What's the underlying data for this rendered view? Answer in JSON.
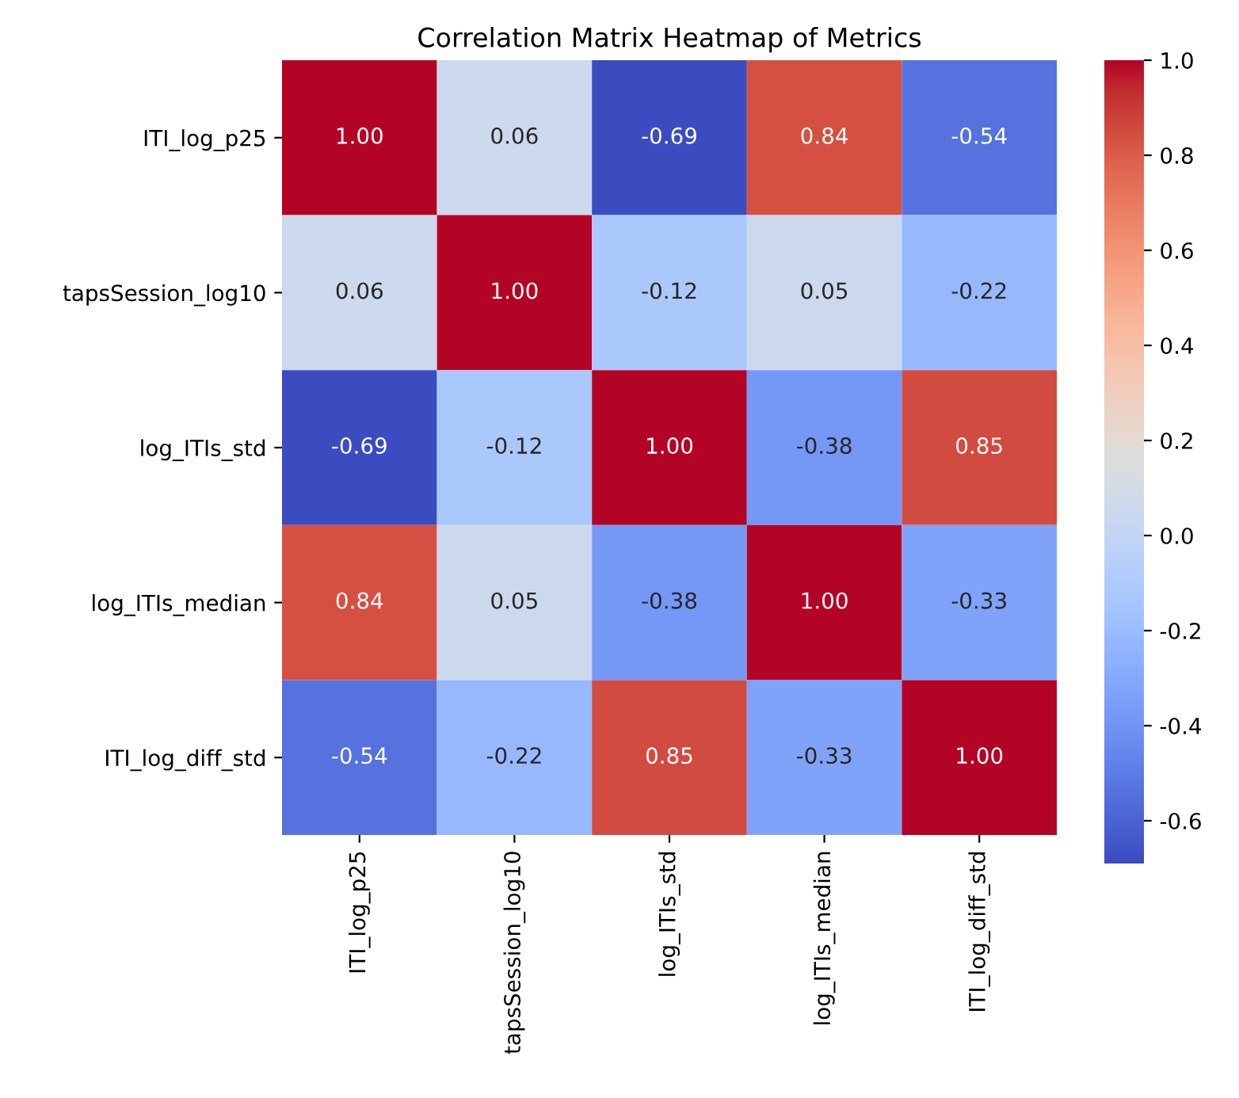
{
  "chart_data": {
    "type": "heatmap",
    "title": "Correlation Matrix Heatmap of Metrics",
    "categories": [
      "ITI_log_p25",
      "tapsSession_log10",
      "log_ITIs_std",
      "log_ITIs_median",
      "ITI_log_diff_std"
    ],
    "y_categories": [
      "ITI_log_p25",
      "tapsSession_log10",
      "log_ITIs_std",
      "log_ITIs_median",
      "ITI_log_diff_std"
    ],
    "cells": [
      [
        1.0,
        0.06,
        -0.69,
        0.84,
        -0.54
      ],
      [
        0.06,
        1.0,
        -0.12,
        0.05,
        -0.22
      ],
      [
        -0.69,
        -0.12,
        1.0,
        -0.38,
        0.85
      ],
      [
        0.84,
        0.05,
        -0.38,
        1.0,
        -0.33
      ],
      [
        -0.54,
        -0.22,
        0.85,
        -0.33,
        1.0
      ]
    ],
    "cell_labels": [
      [
        "1.00",
        "0.06",
        "-0.69",
        "0.84",
        "-0.54"
      ],
      [
        "0.06",
        "1.00",
        "-0.12",
        "0.05",
        "-0.22"
      ],
      [
        "-0.69",
        "-0.12",
        "1.00",
        "-0.38",
        "0.85"
      ],
      [
        "0.84",
        "0.05",
        "-0.38",
        "1.00",
        "-0.33"
      ],
      [
        "-0.54",
        "-0.22",
        "0.85",
        "-0.33",
        "1.00"
      ]
    ],
    "clim": [
      -0.69,
      1.0
    ],
    "cticks": [
      -0.6,
      -0.4,
      -0.2,
      {
        "value": 0,
        "label": "0.0"
      },
      0.2,
      0.4,
      0.6,
      0.8,
      {
        "value": 1,
        "label": "1.0"
      }
    ]
  }
}
